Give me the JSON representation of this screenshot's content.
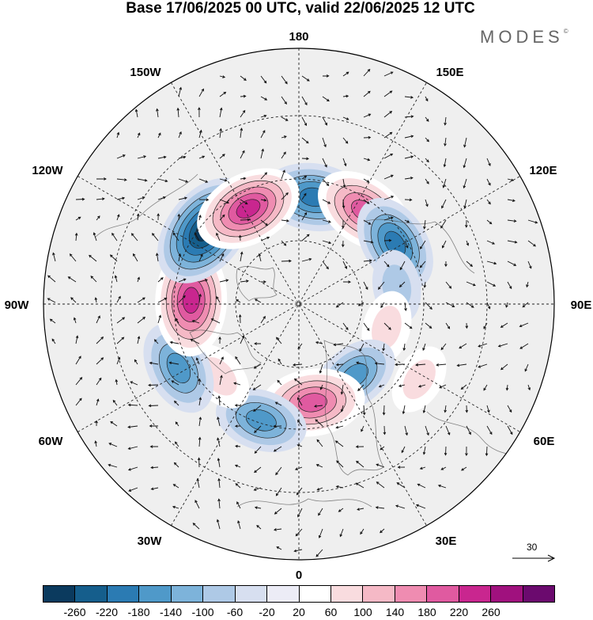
{
  "title": "Base 17/06/2025 00 UTC, valid 22/06/2025 12 UTC",
  "brand": "MODES",
  "brand_mark": "©",
  "longitude_labels": {
    "lon_180": "180",
    "lon_150e": "150E",
    "lon_120e": "120E",
    "lon_90e": "90E",
    "lon_60e": "60E",
    "lon_30e": "30E",
    "lon_0": "0",
    "lon_30w": "30W",
    "lon_60w": "60W",
    "lon_90w": "90W",
    "lon_120w": "120W",
    "lon_150w": "150W"
  },
  "reference_vector": {
    "label": "30"
  },
  "colorbar": {
    "colors": [
      "#0b3a5e",
      "#155e8c",
      "#2b7bb3",
      "#4f99c9",
      "#7db3da",
      "#aec9e6",
      "#d7dff0",
      "#ececf6",
      "#ffffff",
      "#f9dcdf",
      "#f5b9c6",
      "#ef8cb1",
      "#e05aa0",
      "#c9268f",
      "#a0117e",
      "#6b0a6e"
    ],
    "labels": [
      "-260",
      "-220",
      "-180",
      "-140",
      "-100",
      "-60",
      "-20",
      "20",
      "60",
      "100",
      "140",
      "180",
      "220",
      "260"
    ]
  },
  "field_anomalies": [
    {
      "lon": 172,
      "lat": 52,
      "value": -210
    },
    {
      "lon": 145,
      "lat": 50,
      "value": 200
    },
    {
      "lon": 122,
      "lat": 50,
      "value": -190
    },
    {
      "lon": 100,
      "lat": 55,
      "value": -80
    },
    {
      "lon": 75,
      "lat": 58,
      "value": 80
    },
    {
      "lon": 58,
      "lat": 40,
      "value": 70
    },
    {
      "lon": 38,
      "lat": 58,
      "value": -150
    },
    {
      "lon": 8,
      "lat": 55,
      "value": 210
    },
    {
      "lon": -18,
      "lat": 47,
      "value": -160
    },
    {
      "lon": -48,
      "lat": 52,
      "value": 80
    },
    {
      "lon": -62,
      "lat": 42,
      "value": -170
    },
    {
      "lon": -92,
      "lat": 52,
      "value": 240
    },
    {
      "lon": -128,
      "lat": 48,
      "value": -270
    },
    {
      "lon": -152,
      "lat": 52,
      "value": 230
    }
  ]
}
